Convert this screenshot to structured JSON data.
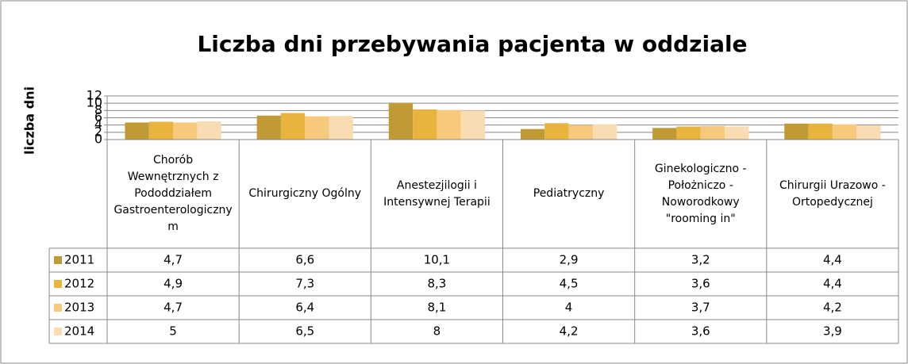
{
  "chart_data": {
    "type": "bar",
    "title": "Liczba dni przebywania pacjenta w oddziale",
    "y_label": "liczba dni",
    "categories": [
      "Chorób Wewnętrznych z Pododdziałem Gastroenterologicznym",
      "Chirurgiczny Ogólny",
      "Anestezjilogii i Intensywnej Terapii",
      "Pediatryczny",
      "Ginekologiczno - Położniczo - Noworodkowy \"rooming in\"",
      "Chirurgii Urazowo - Ortopedycznej"
    ],
    "series": [
      {
        "name": "2011",
        "color": "#c09a35",
        "values": [
          4.7,
          6.6,
          10.1,
          2.9,
          3.2,
          4.4
        ],
        "value_labels": [
          "4,7",
          "6,6",
          "10,1",
          "2,9",
          "3,2",
          "4,4"
        ]
      },
      {
        "name": "2012",
        "color": "#e8b43e",
        "values": [
          4.9,
          7.3,
          8.3,
          4.5,
          3.6,
          4.4
        ],
        "value_labels": [
          "4,9",
          "7,3",
          "8,3",
          "4,5",
          "3,6",
          "4,4"
        ]
      },
      {
        "name": "2013",
        "color": "#f6c97c",
        "values": [
          4.7,
          6.4,
          8.1,
          4,
          3.7,
          4.2
        ],
        "value_labels": [
          "4,7",
          "6,4",
          "8,1",
          "4",
          "3,7",
          "4,2"
        ]
      },
      {
        "name": "2014",
        "color": "#f9dcb2",
        "values": [
          5,
          6.5,
          8,
          4.2,
          3.6,
          3.9
        ],
        "value_labels": [
          "5",
          "6,5",
          "8",
          "4,2",
          "3,6",
          "3,9"
        ]
      }
    ],
    "ylim": [
      0,
      12
    ],
    "yticks": [
      0,
      2,
      4,
      6,
      8,
      10,
      12
    ],
    "grid": true
  }
}
